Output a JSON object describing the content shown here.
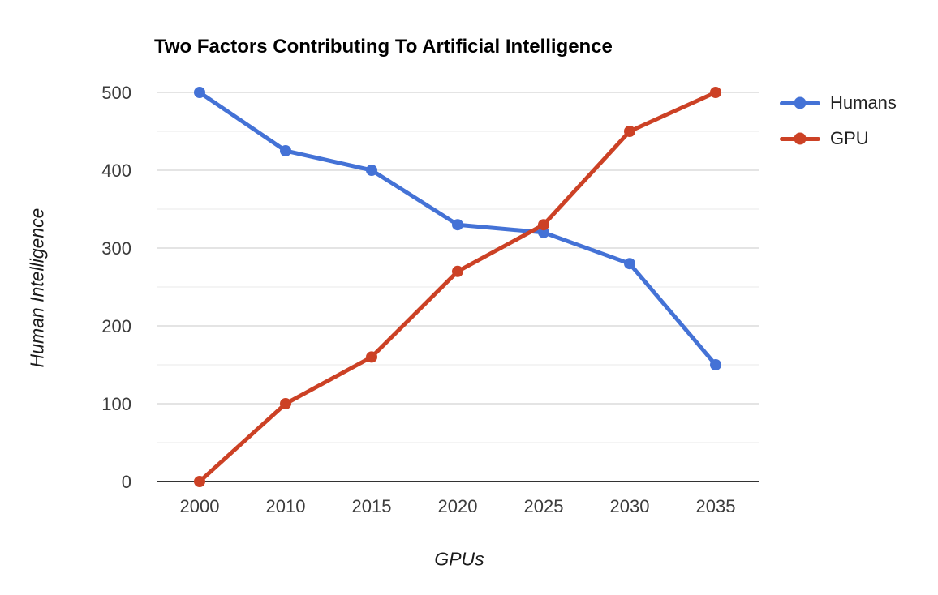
{
  "chart_data": {
    "type": "line",
    "title": "Two Factors Contributing To Artificial Intelligence",
    "xlabel": "GPUs",
    "ylabel": "Human Intelligence",
    "categories": [
      "2000",
      "2010",
      "2015",
      "2020",
      "2025",
      "2030",
      "2035"
    ],
    "series": [
      {
        "name": "Humans",
        "color": "#4472d6",
        "values": [
          500,
          425,
          400,
          330,
          320,
          280,
          150
        ]
      },
      {
        "name": "GPU",
        "color": "#cc4125",
        "values": [
          0,
          100,
          160,
          270,
          330,
          450,
          500
        ]
      }
    ],
    "ylim": [
      0,
      500
    ],
    "y_major_ticks": [
      0,
      100,
      200,
      300,
      400,
      500
    ],
    "y_minor_step": 50,
    "grid": true,
    "legend_position": "right",
    "palette": {
      "major_gridline": "#c9c9c9",
      "minor_gridline": "#e8e8e8",
      "axis_baseline": "#333333",
      "tick_text": "#3c3c3c",
      "title_text": "#000000"
    }
  }
}
